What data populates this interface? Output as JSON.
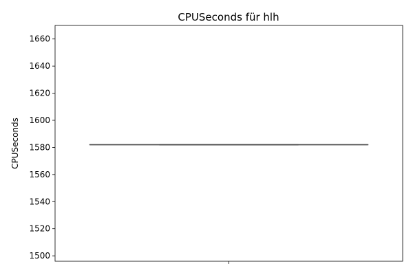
{
  "chart_data": {
    "type": "box",
    "title": "CPUSeconds für hlh",
    "ylabel": "CPUSeconds",
    "xlabel": "",
    "ylim": [
      1496,
      1670
    ],
    "yticks": [
      1500,
      1520,
      1540,
      1560,
      1580,
      1600,
      1620,
      1640,
      1660
    ],
    "boxes": [
      {
        "min": 1582,
        "q1": 1582,
        "median": 1582,
        "q3": 1582,
        "max": 1582
      }
    ],
    "grid": false,
    "colors": {
      "box": "#4c4c4c",
      "axis": "#000000"
    }
  }
}
